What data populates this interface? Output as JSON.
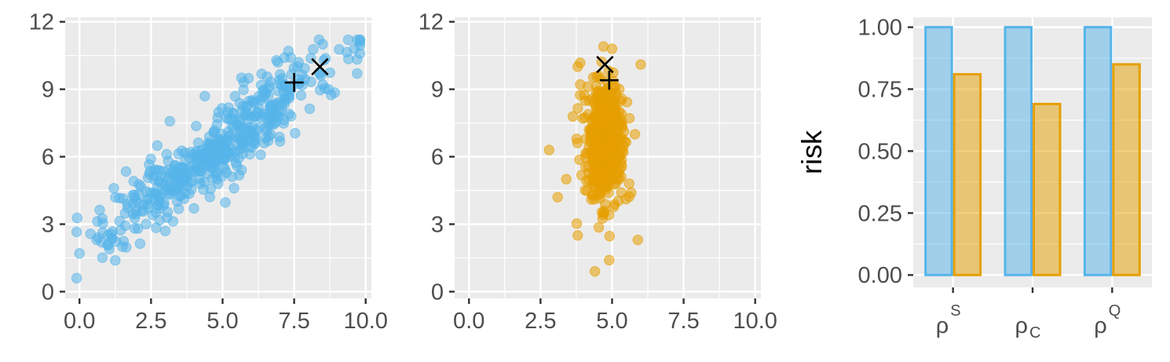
{
  "chart_data": [
    {
      "type": "scatter",
      "xlim": [
        -0.5,
        10.2
      ],
      "ylim": [
        -0.3,
        12.2
      ],
      "x_ticks": [
        0,
        2.5,
        5,
        7.5,
        10
      ],
      "x_tick_labels": [
        "0.0",
        "2.5",
        "5.0",
        "7.5",
        "10.0"
      ],
      "y_ticks": [
        0,
        3,
        6,
        9,
        12
      ],
      "y_tick_labels": [
        "0",
        "3",
        "6",
        "9",
        "12"
      ],
      "grid": true,
      "color": "#56B4E9",
      "cloud": {
        "n": 480,
        "x_mean": 4.8,
        "x_sd": 1.9,
        "slope": 0.95,
        "y_intercept": 1.8,
        "noise_sd": 0.85,
        "seed": 7
      },
      "points": [
        {
          "x": 0.0,
          "y": 1.7
        },
        {
          "x": 0.6,
          "y": 2.3
        },
        {
          "x": 1.5,
          "y": 2.0
        },
        {
          "x": 3.0,
          "y": 2.7
        },
        {
          "x": 8.5,
          "y": 11.0
        },
        {
          "x": 9.6,
          "y": 10.8
        },
        {
          "x": 9.7,
          "y": 9.7
        },
        {
          "x": 8.7,
          "y": 9.0
        },
        {
          "x": 7.3,
          "y": 10.7
        },
        {
          "x": 5.4,
          "y": 4.6
        },
        {
          "x": 4.0,
          "y": 3.7
        },
        {
          "x": 1.2,
          "y": 4.6
        }
      ],
      "markers": [
        {
          "shape": "plus",
          "x": 7.5,
          "y": 9.3
        },
        {
          "shape": "cross",
          "x": 8.4,
          "y": 10.0
        }
      ]
    },
    {
      "type": "scatter",
      "xlim": [
        -0.5,
        10.2
      ],
      "ylim": [
        -0.3,
        12.2
      ],
      "x_ticks": [
        0,
        2.5,
        5,
        7.5,
        10
      ],
      "x_tick_labels": [
        "0.0",
        "2.5",
        "5.0",
        "7.5",
        "10.0"
      ],
      "y_ticks": [
        0,
        3,
        6,
        9,
        12
      ],
      "y_tick_labels": [
        "0",
        "3",
        "6",
        "9",
        "12"
      ],
      "grid": true,
      "color": "#E69F00",
      "cloud": {
        "n": 480,
        "x_mean": 4.7,
        "x_sd": 0.35,
        "y_mean": 6.6,
        "y_sd": 1.35,
        "seed": 13
      },
      "points": [
        {
          "x": 2.8,
          "y": 6.3
        },
        {
          "x": 3.1,
          "y": 4.2
        },
        {
          "x": 3.8,
          "y": 2.5
        },
        {
          "x": 4.4,
          "y": 0.9
        },
        {
          "x": 4.9,
          "y": 1.4
        },
        {
          "x": 5.9,
          "y": 2.3
        },
        {
          "x": 6.0,
          "y": 10.1
        },
        {
          "x": 3.8,
          "y": 10.0
        },
        {
          "x": 4.7,
          "y": 10.9
        },
        {
          "x": 5.0,
          "y": 10.8
        },
        {
          "x": 3.4,
          "y": 5.0
        },
        {
          "x": 5.8,
          "y": 7.0
        }
      ],
      "markers": [
        {
          "shape": "plus",
          "x": 4.9,
          "y": 9.4
        },
        {
          "shape": "cross",
          "x": 4.75,
          "y": 10.1
        }
      ]
    },
    {
      "type": "bar",
      "ylabel": "risk",
      "ylim": [
        -0.05,
        1.04
      ],
      "y_ticks": [
        0,
        0.25,
        0.5,
        0.75,
        1.0
      ],
      "y_tick_labels": [
        "0.00",
        "0.25",
        "0.50",
        "0.75",
        "1.00"
      ],
      "grid": true,
      "categories": [
        {
          "base": "ρ",
          "script": "S",
          "position": "sup"
        },
        {
          "base": "ρ",
          "script": "C",
          "position": "sub"
        },
        {
          "base": "ρ",
          "script": "Q",
          "position": "sup"
        }
      ],
      "series": [
        {
          "color": "#56B4E9",
          "values": [
            1.0,
            1.0,
            1.0
          ]
        },
        {
          "color": "#E69F00",
          "values": [
            0.81,
            0.69,
            0.85
          ]
        }
      ]
    }
  ]
}
